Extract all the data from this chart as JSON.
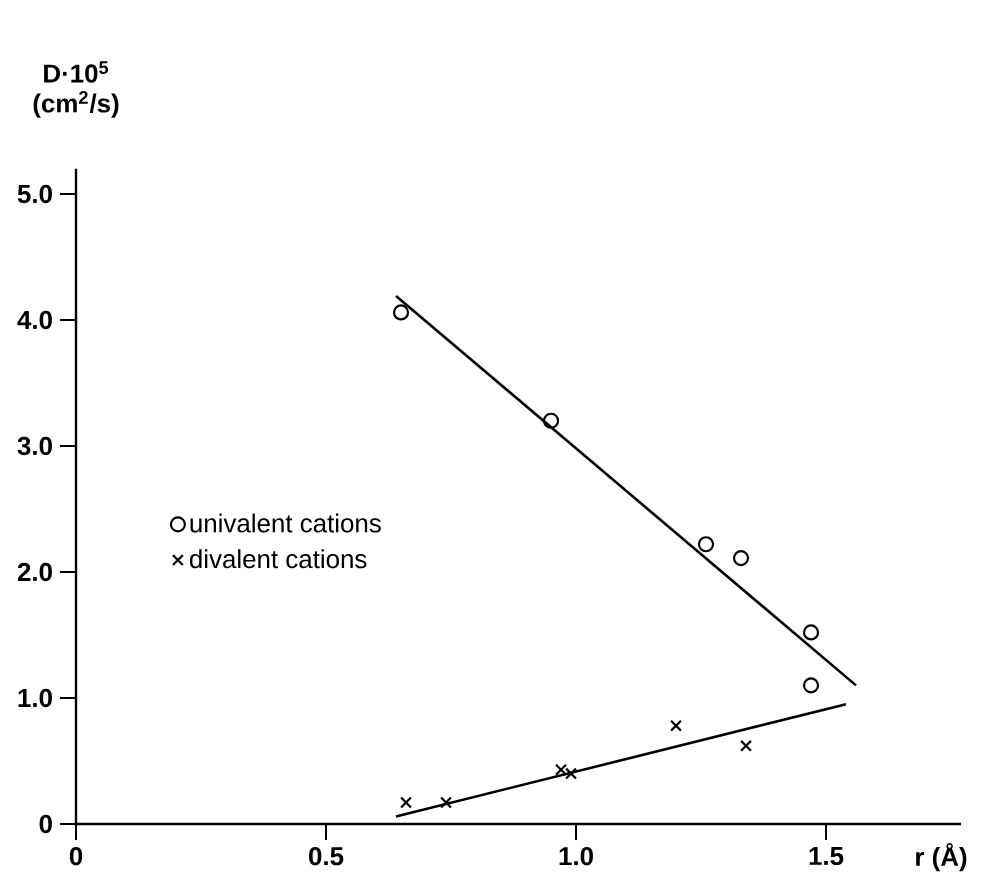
{
  "chart_data": {
    "type": "scatter",
    "xlabel": "r (Å)",
    "ylabel": "D·10$^{5}$ (cm$^{2}$/s)",
    "xlim": [
      0,
      1.77
    ],
    "ylim": [
      0,
      5.2
    ],
    "xticks": [
      0,
      0.5,
      {
        "value": 1.0,
        "label": "1.0"
      },
      1.5
    ],
    "yticks": [
      0,
      {
        "value": 1.0,
        "label": "1.0"
      },
      {
        "value": 2.0,
        "label": "2.0"
      },
      {
        "value": 3.0,
        "label": "3.0"
      },
      {
        "value": 4.0,
        "label": "4.0"
      },
      {
        "value": 5.0,
        "label": "5.0"
      }
    ],
    "legend": "left",
    "grid": false,
    "series": [
      {
        "name": "univalent cations",
        "type": "scatter",
        "marker": "circle",
        "color": "#000000",
        "x": [
          0.65,
          0.95,
          1.26,
          1.33,
          1.47,
          1.47
        ],
        "values": [
          4.06,
          3.2,
          2.22,
          2.11,
          1.52,
          1.1
        ]
      },
      {
        "name": "divalent cations",
        "type": "scatter",
        "marker": "cross",
        "color": "#000000",
        "x": [
          0.66,
          0.74,
          0.97,
          0.99,
          1.2,
          1.34
        ],
        "values": [
          0.17,
          0.17,
          0.43,
          0.4,
          0.78,
          0.62
        ]
      },
      {
        "type": "line",
        "color": "#000000",
        "x": [
          0.64,
          1.56
        ],
        "values": [
          4.19,
          1.1
        ]
      },
      {
        "type": "line",
        "color": "#000000",
        "x": [
          0.64,
          1.54
        ],
        "values": [
          0.06,
          0.95
        ]
      }
    ]
  }
}
